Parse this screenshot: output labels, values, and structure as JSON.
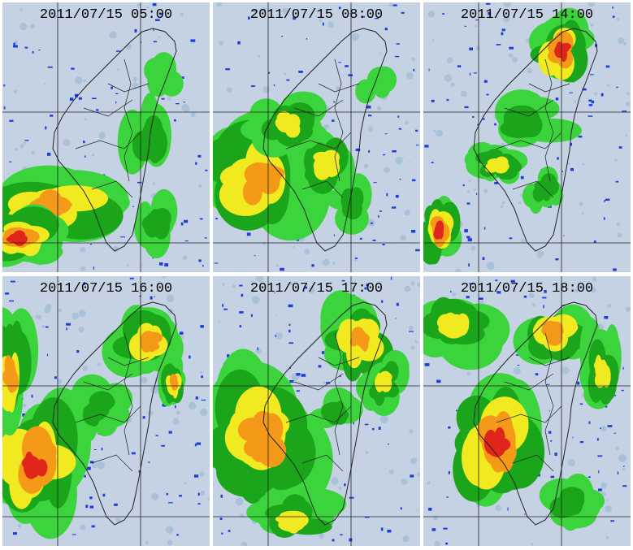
{
  "figure": {
    "panels": [
      {
        "timestamp": "2011/07/15  05:00"
      },
      {
        "timestamp": "2011/07/15  08:00"
      },
      {
        "timestamp": "2011/07/15  14:00"
      },
      {
        "timestamp": "2011/07/15  16:00"
      },
      {
        "timestamp": "2011/07/15  17:00"
      },
      {
        "timestamp": "2011/07/15  18:00"
      }
    ],
    "colors": {
      "background": "#c4d2e4",
      "light_echo": "#a9c1d9",
      "blue": "#1d3fd6",
      "green_light": "#3cd43c",
      "green": "#1aa51a",
      "yellow": "#f2ea20",
      "orange": "#f59a18",
      "red": "#e0261a",
      "darkred": "#a81010",
      "coastline": "#222222",
      "gridline": "#222222"
    }
  }
}
